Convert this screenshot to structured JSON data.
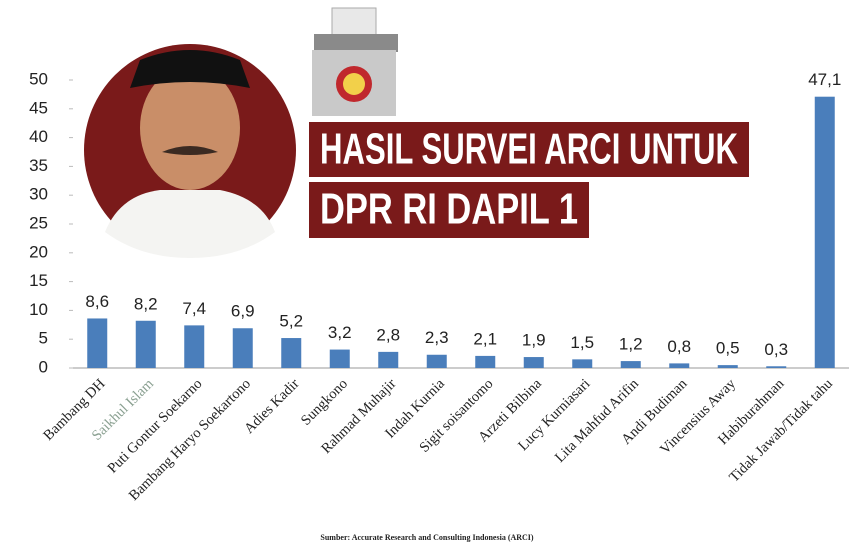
{
  "chart_data": {
    "type": "bar",
    "title": [
      "HASIL SURVEI ARCI UNTUK",
      "DPR RI DAPIL 1"
    ],
    "source": "Sumber: Accurate Research and Consulting Indonesia (ARCI)",
    "categories": [
      "Bambang DH",
      "Saikhul Islam",
      "Puti Gontur Soekarno",
      "Bambang Haryo Soekartono",
      "Adies Kadir",
      "Sungkono",
      "Rahmad Muhajir",
      "Indah Kurnia",
      "Sigit soisantomo",
      "Arzeti Bilbina",
      "Lucy Kurniasari",
      "Lita Mahfud Arifin",
      "Andi Budiman",
      "Vincensius Away",
      "Habiburahman",
      "Tidak Jawab/Tidak tahu"
    ],
    "values": [
      8.6,
      8.2,
      7.4,
      6.9,
      5.2,
      3.2,
      2.8,
      2.3,
      2.1,
      1.9,
      1.5,
      1.2,
      0.8,
      0.5,
      0.3,
      47.1
    ],
    "value_labels": [
      "8,6",
      "8,2",
      "7,4",
      "6,9",
      "5,2",
      "3,2",
      "2,8",
      "2,3",
      "2,1",
      "1,9",
      "1,5",
      "1,2",
      "0,8",
      "0,5",
      "0,3",
      "47,1"
    ],
    "color": "#4a7ebb",
    "ylim": [
      0,
      50
    ],
    "yticks": [
      0,
      5,
      10,
      15,
      20,
      25,
      30,
      35,
      40,
      45,
      50
    ],
    "grid": false
  }
}
